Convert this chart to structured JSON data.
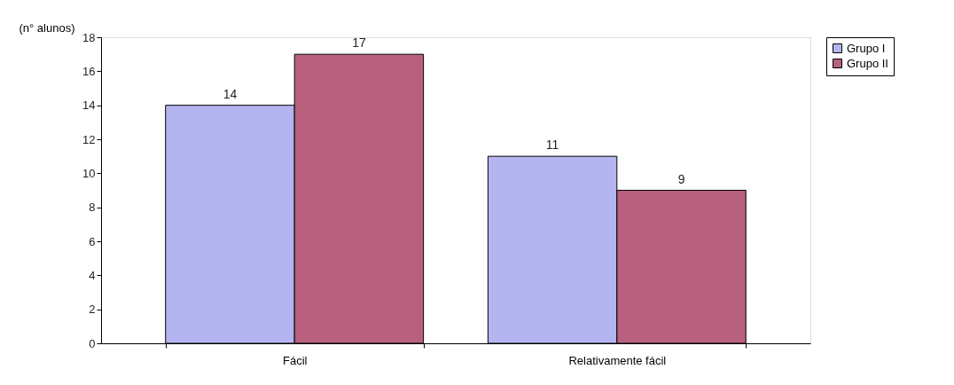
{
  "chart_data": {
    "type": "bar",
    "ylabel": "(n° alunos)",
    "categories": [
      "Fácil",
      "Relativamente fácil"
    ],
    "series": [
      {
        "name": "Grupo I",
        "color": "#b4b4f0",
        "values": [
          14,
          11
        ]
      },
      {
        "name": "Grupo II",
        "color": "#b8607e",
        "values": [
          17,
          9
        ]
      }
    ],
    "ylim": [
      0,
      18
    ],
    "yticks": [
      0,
      2,
      4,
      6,
      8,
      10,
      12,
      14,
      16,
      18
    ],
    "grid": false,
    "legend": "right",
    "data_labels": true
  }
}
